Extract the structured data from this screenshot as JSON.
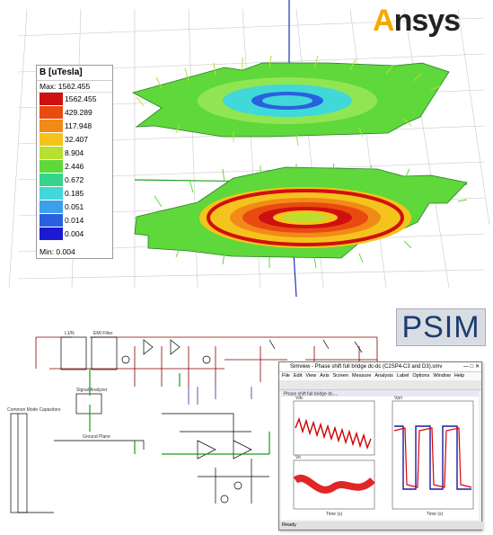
{
  "brand_ansys": {
    "first": "A",
    "rest": "nsys"
  },
  "brand_psim": "PSIM",
  "legend": {
    "title": "B [uTesla]",
    "max_label": "Max: 1562.455",
    "min_label": "Min:    0.004",
    "entries": [
      {
        "value": "1562.455",
        "color": "#d01010"
      },
      {
        "value": "429.289",
        "color": "#e84a10"
      },
      {
        "value": "117.948",
        "color": "#f28a18"
      },
      {
        "value": "32.407",
        "color": "#f4c41c"
      },
      {
        "value": "8.904",
        "color": "#b8e030"
      },
      {
        "value": "2.446",
        "color": "#5ed83a"
      },
      {
        "value": "0.672",
        "color": "#34d48c"
      },
      {
        "value": "0.185",
        "color": "#40d8d8"
      },
      {
        "value": "0.051",
        "color": "#3aa0ec"
      },
      {
        "value": "0.014",
        "color": "#2a60e0"
      },
      {
        "value": "0.004",
        "color": "#1a1ad0"
      }
    ]
  },
  "schematic_labels": {
    "title_block": "L1/N",
    "emi": "EMI Filter",
    "signal": "Signal Analyzer",
    "cmc": "Common Mode Capacitors",
    "ground": "Ground Plane"
  },
  "simview": {
    "title": "Simview - Phase shift full bridge dc-dc (C2SP4-C3 and D3).smv",
    "menu": [
      "File",
      "Edit",
      "View",
      "Axis",
      "Screen",
      "Measure",
      "Analysis",
      "Label",
      "Options",
      "Window",
      "Help"
    ],
    "plot_title": "Phase shift full bridge dc-...",
    "panel1_label": "Vdc",
    "panel2_label": "Vo",
    "panel3_label": "Vpri",
    "xaxis_label": "Time (s)",
    "status": "Ready"
  }
}
